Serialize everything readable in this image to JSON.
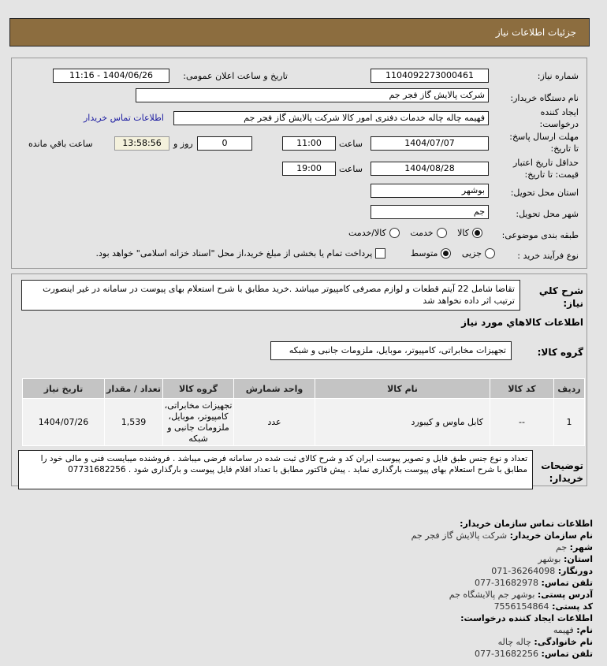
{
  "header": {
    "title": "جزئیات اطلاعات نیاز"
  },
  "form": {
    "need_number_label": "شماره نیاز:",
    "need_number": "1104092273000461",
    "announce_label": "تاریخ و ساعت اعلان عمومی:",
    "announce_value": "1404/06/26 - 11:16",
    "buyer_label": "نام دستگاه خریدار:",
    "buyer": "شرکت پالایش گاز فجر جم",
    "creator_label_1": "ایجاد کننده",
    "creator_label_2": "درخواست:",
    "creator": "فهیمه چاله چاله خدمات دفتری امور کالا شرکت پالایش گاز فجر جم",
    "contact_link": "اطلاعات تماس خریدار",
    "deadline_label_1": "مهلت ارسال پاسخ:",
    "deadline_label_2": "تا تاریخ:",
    "deadline_date": "1404/07/07",
    "time_label": "ساعت",
    "deadline_time": "11:00",
    "days": "0",
    "days_label": "روز و",
    "remaining": "13:58:56",
    "remaining_label": "ساعت باقي مانده",
    "validity_label_1": "حداقل تاریخ اعتبار",
    "validity_label_2": "قیمت: تا تاریخ:",
    "validity_date": "1404/08/28",
    "validity_time": "19:00",
    "province_label": "استان محل تحویل:",
    "province": "بوشهر",
    "city_label": "شهر محل تحویل:",
    "city": "جم",
    "category_label": "طبقه بندی موضوعی:",
    "category_options": [
      "کالا",
      "خدمت",
      "کالا/خدمت"
    ],
    "category_selected": "کالا",
    "process_label": "نوع فرآیند خرید :",
    "process_options": [
      "جزیی",
      "متوسط"
    ],
    "process_selected": "متوسط",
    "payment_text": "پرداخت تمام یا بخشی از مبلغ خرید،از محل \"اسناد خزانه اسلامی\" خواهد بود."
  },
  "details": {
    "desc_label_1": "شرح كلي",
    "desc_label_2": "نياز:",
    "desc": "تقاضا شامل 22 آیتم قطعات و لوازم مصرفی کامپیوتر میباشد .خرید مطابق با شرح استعلام بهای پیوست در سامانه در غیر اینصورت ترتیب اثر داده نخواهد شد",
    "goods_heading": "اطلاعات كالاهاي مورد نياز",
    "group_label": "گروه کالا:",
    "group": "تجهیزات مخابراتی، کامپیوتر، موبایل، ملزومات جانبی و شبکه",
    "table": {
      "headers": [
        "ردیف",
        "کد کالا",
        "نام کالا",
        "واحد شمارش",
        "گروه کالا",
        "تعداد / مقدار",
        "تاریخ نیاز"
      ],
      "rows": [
        [
          "1",
          "--",
          "کابل ماوس و کیبورد",
          "عدد",
          "تجهیزات مخابراتی، کامپیوتر، موبایل، ملزومات جانبی و شبکه",
          "1,539",
          "1404/07/26"
        ]
      ]
    },
    "notes_label_1": "توضیحات",
    "notes_label_2": "خریدار:",
    "notes": "تعداد و نوع جنس طبق فایل و تصویر پیوست ایران کد و شرح کالای ثبت شده در سامانه فرضی میباشد . فروشنده میبایست فنی و مالی خود را مطابق با شرح استعلام بهای پیوست بارگذاری نماید . پیش فاکتور مطابق با تعداد اقلام فایل پیوست و بارگذاری شود . 07731682256"
  },
  "contact": {
    "title": "اطلاعات تماس سازمان خریدار:",
    "org_k": "نام سازمان خریدار:",
    "org_v": "شرکت پالایش گاز فجر جم",
    "city_k": "شهر:",
    "city_v": "جم",
    "prov_k": "استان:",
    "prov_v": "بوشهر",
    "fax_k": "دورنگار:",
    "fax_v": "36264098-071",
    "tel_k": "تلفن تماس:",
    "tel_v": "31682978-077",
    "addr_k": "آدرس پستی:",
    "addr_v": "بوشهر جم پالایشگاه جم",
    "post_k": "کد پستی:",
    "post_v": "7556154864",
    "creator_title": "اطلاعات ایجاد کننده درخواست:",
    "name_k": "نام:",
    "name_v": "فهیمه",
    "family_k": "نام خانوادگی:",
    "family_v": "چاله چاله",
    "ctel_k": "تلفن تماس:",
    "ctel_v": "31682256-077"
  }
}
